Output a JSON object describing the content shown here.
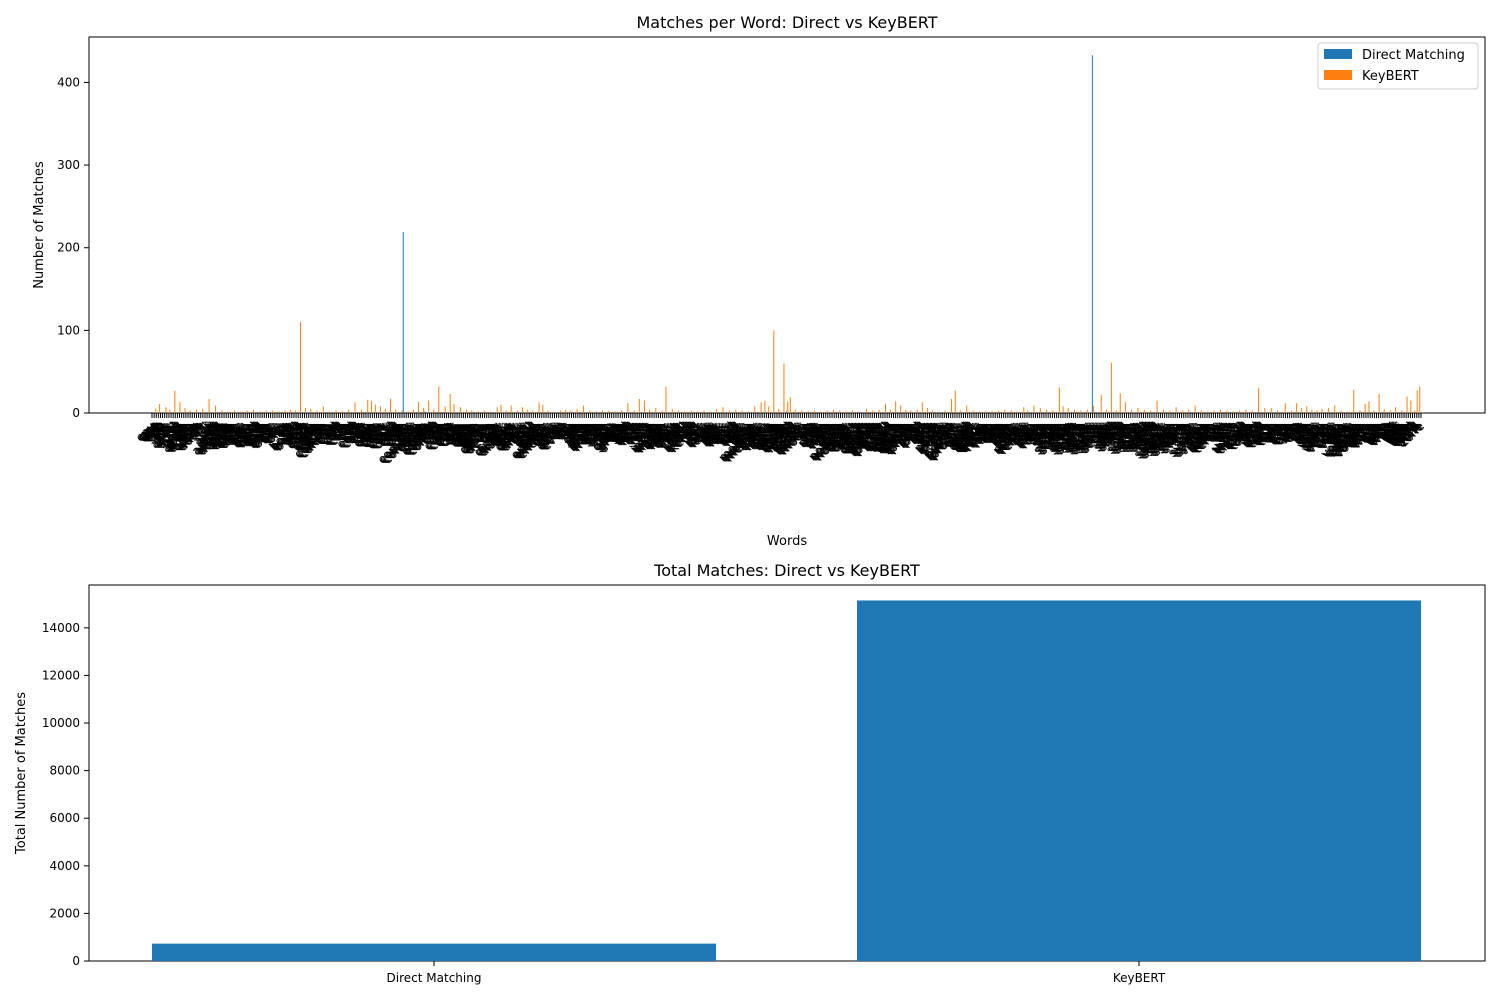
{
  "colors": {
    "direct": "#1f77b4",
    "keybert": "#ff7f0e",
    "axis": "#000000",
    "background": "#ffffff"
  },
  "chart_data": [
    {
      "type": "bar",
      "title": "Matches per Word: Direct vs KeyBERT",
      "xlabel": "Words",
      "ylabel": "Number of Matches",
      "ylim": [
        0,
        455
      ],
      "yticks": [
        0,
        100,
        200,
        300,
        400
      ],
      "legend": {
        "placement": "top-right",
        "entries": [
          "Direct Matching",
          "KeyBERT"
        ]
      },
      "word_labels": [
        "cpu",
        "650",
        "18s",
        "accel",
        "acne",
        "action",
        "adapt",
        "ai",
        "amd",
        "analog",
        "apple",
        "array",
        "auto",
        "band",
        "base",
        "basic",
        "bios",
        "bit",
        "board",
        "boot",
        "cable",
        "cache",
        "camera",
        "card",
        "case",
        "cell",
        "chart",
        "chip",
        "class",
        "clock",
        "cloud",
        "code",
        "color",
        "compute",
        "config",
        "control",
        "core",
        "count",
        "cuda",
        "data",
        "deep",
        "delta",
        "device",
        "disk",
        "display",
        "dock",
        "driver",
        "dual",
        "edge",
        "entropy",
        "error",
        "event",
        "fan",
        "file",
        "flash",
        "frame",
        "gate",
        "gpu",
        "graph",
        "grid",
        "heat",
        "host",
        "hub",
        "image",
        "index",
        "input",
        "intel",
        "kernel",
        "key",
        "layer",
        "link",
        "linux",
        "load",
        "logic",
        "loop",
        "memory",
        "menu",
        "mesh",
        "mode",
        "model",
        "motor",
        "mouse",
        "net",
        "node",
        "noise",
        "note",
        "notwork",
        "object",
        "offset",
        "output",
        "packet",
        "panel",
        "patch",
        "phase",
        "phone",
        "pixel",
        "plot",
        "port",
        "power",
        "print",
        "process",
        "quad",
        "query",
        "queue",
        "radio",
        "ram",
        "rate",
        "relay",
        "render",
        "repo",
        "route",
        "safe",
        "scale",
        "screen",
        "script",
        "search",
        "sector",
        "sensor",
        "server",
        "shell",
        "signal",
        "size",
        "socket",
        "sound",
        "speed",
        "stack",
        "storage",
        "stream",
        "switch",
        "sync",
        "system",
        "table",
        "tensor",
        "test",
        "text",
        "thread",
        "token",
        "tool",
        "trace",
        "train",
        "tree",
        "type",
        "unit",
        "usb",
        "user",
        "value",
        "vector",
        "video",
        "view",
        "voltage",
        "volume",
        "wave",
        "web",
        "west",
        "wifi",
        "wire",
        "word",
        "zone"
      ],
      "series": [
        {
          "name": "Direct Matching",
          "points": [
            [
              0.157,
              1
            ],
            [
              0.198,
              219
            ],
            [
              0.215,
              2
            ],
            [
              0.33,
              1
            ],
            [
              0.5,
              2
            ],
            [
              0.7,
              1
            ],
            [
              0.741,
              433
            ],
            [
              0.85,
              1
            ]
          ]
        },
        {
          "name": "KeyBERT",
          "points": [
            [
              0.003,
              5
            ],
            [
              0.006,
              11
            ],
            [
              0.011,
              7
            ],
            [
              0.014,
              4
            ],
            [
              0.018,
              27
            ],
            [
              0.022,
              13
            ],
            [
              0.026,
              6
            ],
            [
              0.03,
              3
            ],
            [
              0.035,
              4
            ],
            [
              0.04,
              5
            ],
            [
              0.045,
              17
            ],
            [
              0.05,
              9
            ],
            [
              0.055,
              3
            ],
            [
              0.06,
              2
            ],
            [
              0.065,
              3
            ],
            [
              0.07,
              2
            ],
            [
              0.075,
              3
            ],
            [
              0.08,
              4
            ],
            [
              0.085,
              2
            ],
            [
              0.09,
              3
            ],
            [
              0.095,
              3
            ],
            [
              0.1,
              2
            ],
            [
              0.105,
              3
            ],
            [
              0.109,
              4
            ],
            [
              0.113,
              3
            ],
            [
              0.117,
              110
            ],
            [
              0.121,
              6
            ],
            [
              0.125,
              5
            ],
            [
              0.13,
              3
            ],
            [
              0.135,
              8
            ],
            [
              0.14,
              2
            ],
            [
              0.145,
              3
            ],
            [
              0.15,
              2
            ],
            [
              0.155,
              4
            ],
            [
              0.16,
              13
            ],
            [
              0.165,
              4
            ],
            [
              0.17,
              16
            ],
            [
              0.173,
              15
            ],
            [
              0.176,
              10
            ],
            [
              0.18,
              8
            ],
            [
              0.184,
              5
            ],
            [
              0.188,
              17
            ],
            [
              0.192,
              4
            ],
            [
              0.197,
              3
            ],
            [
              0.202,
              2
            ],
            [
              0.206,
              4
            ],
            [
              0.21,
              13
            ],
            [
              0.214,
              6
            ],
            [
              0.218,
              15
            ],
            [
              0.222,
              4
            ],
            [
              0.226,
              32
            ],
            [
              0.231,
              8
            ],
            [
              0.235,
              23
            ],
            [
              0.238,
              11
            ],
            [
              0.243,
              7
            ],
            [
              0.248,
              4
            ],
            [
              0.252,
              3
            ],
            [
              0.257,
              2
            ],
            [
              0.262,
              3
            ],
            [
              0.267,
              2
            ],
            [
              0.272,
              7
            ],
            [
              0.275,
              10
            ],
            [
              0.279,
              3
            ],
            [
              0.283,
              9
            ],
            [
              0.288,
              3
            ],
            [
              0.292,
              7
            ],
            [
              0.296,
              4
            ],
            [
              0.3,
              3
            ],
            [
              0.305,
              13
            ],
            [
              0.308,
              10
            ],
            [
              0.312,
              3
            ],
            [
              0.317,
              2
            ],
            [
              0.322,
              3
            ],
            [
              0.326,
              4
            ],
            [
              0.33,
              3
            ],
            [
              0.335,
              5
            ],
            [
              0.34,
              9
            ],
            [
              0.345,
              3
            ],
            [
              0.35,
              2
            ],
            [
              0.355,
              3
            ],
            [
              0.36,
              3
            ],
            [
              0.365,
              2
            ],
            [
              0.37,
              3
            ],
            [
              0.375,
              12
            ],
            [
              0.38,
              3
            ],
            [
              0.384,
              17
            ],
            [
              0.388,
              15
            ],
            [
              0.392,
              4
            ],
            [
              0.397,
              6
            ],
            [
              0.402,
              3
            ],
            [
              0.405,
              32
            ],
            [
              0.41,
              5
            ],
            [
              0.415,
              3
            ],
            [
              0.42,
              2
            ],
            [
              0.425,
              3
            ],
            [
              0.43,
              2
            ],
            [
              0.435,
              3
            ],
            [
              0.44,
              2
            ],
            [
              0.445,
              5
            ],
            [
              0.45,
              7
            ],
            [
              0.455,
              3
            ],
            [
              0.46,
              4
            ],
            [
              0.465,
              3
            ],
            [
              0.47,
              2
            ],
            [
              0.475,
              8
            ],
            [
              0.48,
              13
            ],
            [
              0.483,
              15
            ],
            [
              0.486,
              8
            ],
            [
              0.49,
              100
            ],
            [
              0.494,
              5
            ],
            [
              0.498,
              60
            ],
            [
              0.501,
              14
            ],
            [
              0.503,
              19
            ],
            [
              0.507,
              4
            ],
            [
              0.512,
              3
            ],
            [
              0.517,
              2
            ],
            [
              0.522,
              3
            ],
            [
              0.527,
              2
            ],
            [
              0.532,
              3
            ],
            [
              0.537,
              4
            ],
            [
              0.542,
              3
            ],
            [
              0.547,
              2
            ],
            [
              0.552,
              3
            ],
            [
              0.557,
              2
            ],
            [
              0.563,
              5
            ],
            [
              0.568,
              3
            ],
            [
              0.573,
              4
            ],
            [
              0.578,
              11
            ],
            [
              0.582,
              4
            ],
            [
              0.586,
              14
            ],
            [
              0.59,
              9
            ],
            [
              0.594,
              4
            ],
            [
              0.598,
              3
            ],
            [
              0.603,
              4
            ],
            [
              0.607,
              13
            ],
            [
              0.611,
              6
            ],
            [
              0.615,
              3
            ],
            [
              0.62,
              2
            ],
            [
              0.625,
              3
            ],
            [
              0.63,
              17
            ],
            [
              0.633,
              27
            ],
            [
              0.637,
              3
            ],
            [
              0.642,
              9
            ],
            [
              0.647,
              3
            ],
            [
              0.652,
              2
            ],
            [
              0.657,
              3
            ],
            [
              0.662,
              2
            ],
            [
              0.667,
              3
            ],
            [
              0.672,
              4
            ],
            [
              0.677,
              3
            ],
            [
              0.682,
              2
            ],
            [
              0.687,
              7
            ],
            [
              0.69,
              3
            ],
            [
              0.695,
              9
            ],
            [
              0.7,
              6
            ],
            [
              0.705,
              4
            ],
            [
              0.71,
              3
            ],
            [
              0.715,
              31
            ],
            [
              0.718,
              8
            ],
            [
              0.722,
              6
            ],
            [
              0.727,
              4
            ],
            [
              0.732,
              3
            ],
            [
              0.737,
              4
            ],
            [
              0.742,
              9
            ],
            [
              0.748,
              22
            ],
            [
              0.752,
              4
            ],
            [
              0.756,
              61
            ],
            [
              0.76,
              3
            ],
            [
              0.763,
              24
            ],
            [
              0.767,
              13
            ],
            [
              0.772,
              4
            ],
            [
              0.777,
              6
            ],
            [
              0.782,
              4
            ],
            [
              0.787,
              3
            ],
            [
              0.792,
              15
            ],
            [
              0.797,
              4
            ],
            [
              0.802,
              3
            ],
            [
              0.807,
              7
            ],
            [
              0.812,
              3
            ],
            [
              0.817,
              4
            ],
            [
              0.822,
              9
            ],
            [
              0.827,
              3
            ],
            [
              0.832,
              2
            ],
            [
              0.837,
              3
            ],
            [
              0.842,
              4
            ],
            [
              0.847,
              3
            ],
            [
              0.852,
              2
            ],
            [
              0.857,
              3
            ],
            [
              0.862,
              4
            ],
            [
              0.867,
              3
            ],
            [
              0.872,
              30
            ],
            [
              0.877,
              6
            ],
            [
              0.882,
              6
            ],
            [
              0.887,
              3
            ],
            [
              0.893,
              12
            ],
            [
              0.898,
              3
            ],
            [
              0.902,
              12
            ],
            [
              0.906,
              6
            ],
            [
              0.91,
              8
            ],
            [
              0.914,
              4
            ],
            [
              0.918,
              3
            ],
            [
              0.922,
              5
            ],
            [
              0.927,
              6
            ],
            [
              0.932,
              9
            ],
            [
              0.937,
              3
            ],
            [
              0.942,
              2
            ],
            [
              0.947,
              28
            ],
            [
              0.952,
              3
            ],
            [
              0.956,
              11
            ],
            [
              0.959,
              14
            ],
            [
              0.963,
              3
            ],
            [
              0.967,
              23
            ],
            [
              0.971,
              5
            ],
            [
              0.976,
              3
            ],
            [
              0.98,
              7
            ],
            [
              0.985,
              3
            ],
            [
              0.989,
              20
            ],
            [
              0.992,
              15
            ],
            [
              0.995,
              3
            ],
            [
              0.997,
              27
            ],
            [
              0.999,
              32
            ]
          ]
        }
      ]
    },
    {
      "type": "bar",
      "title": "Total Matches: Direct vs KeyBERT",
      "xlabel": "",
      "ylabel": "Total Number of Matches",
      "ylim": [
        0,
        15800
      ],
      "yticks": [
        0,
        2000,
        4000,
        6000,
        8000,
        10000,
        12000,
        14000
      ],
      "categories": [
        "Direct Matching",
        "KeyBERT"
      ],
      "values": [
        730,
        15150
      ]
    }
  ]
}
